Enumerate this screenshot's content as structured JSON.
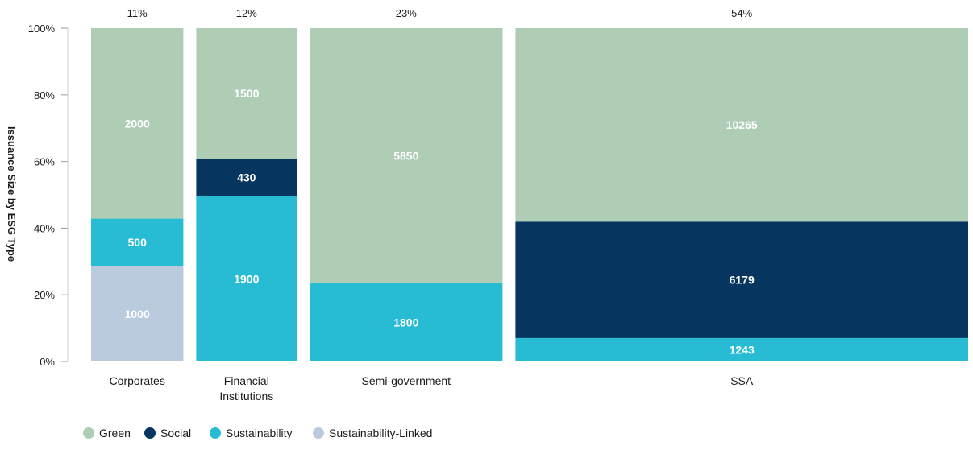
{
  "chart_data": {
    "type": "bar",
    "subtype": "mekko",
    "ylabel": "Issuance Size by ESG Type",
    "yticks": [
      "0%",
      "20%",
      "40%",
      "60%",
      "80%",
      "100%"
    ],
    "ylim": [
      0,
      100
    ],
    "legend_position": "bottom-left",
    "colors": {
      "Green": "#afcdb5",
      "Social": "#063660",
      "Sustainability": "#27bbd4",
      "Sustainability-Linked": "#b9cbdc"
    },
    "category_labels": [
      "Corporates",
      "Financial Institutions",
      "Semi-government",
      "SSA"
    ],
    "categories": [
      {
        "name": "Corporates",
        "share_label": "11%",
        "share": 11,
        "segments": [
          {
            "series": "Sustainability-Linked",
            "value": 1000,
            "label": "1000"
          },
          {
            "series": "Sustainability",
            "value": 500,
            "label": "500"
          },
          {
            "series": "Green",
            "value": 2000,
            "label": "2000"
          }
        ]
      },
      {
        "name": "Financial Institutions",
        "share_label": "12%",
        "share": 12,
        "segments": [
          {
            "series": "Sustainability",
            "value": 1900,
            "label": "1900"
          },
          {
            "series": "Social",
            "value": 430,
            "label": "430"
          },
          {
            "series": "Green",
            "value": 1500,
            "label": "1500"
          }
        ]
      },
      {
        "name": "Semi-government",
        "share_label": "23%",
        "share": 23,
        "segments": [
          {
            "series": "Sustainability",
            "value": 1800,
            "label": "1800"
          },
          {
            "series": "Green",
            "value": 5850,
            "label": "5850"
          }
        ]
      },
      {
        "name": "SSA",
        "share_label": "54%",
        "share": 54,
        "segments": [
          {
            "series": "Sustainability",
            "value": 1243,
            "label": "1243"
          },
          {
            "series": "Social",
            "value": 6179,
            "label": "6179"
          },
          {
            "series": "Green",
            "value": 10265,
            "label": "10265"
          }
        ]
      }
    ],
    "legend": [
      "Green",
      "Social",
      "Sustainability",
      "Sustainability-Linked"
    ]
  }
}
